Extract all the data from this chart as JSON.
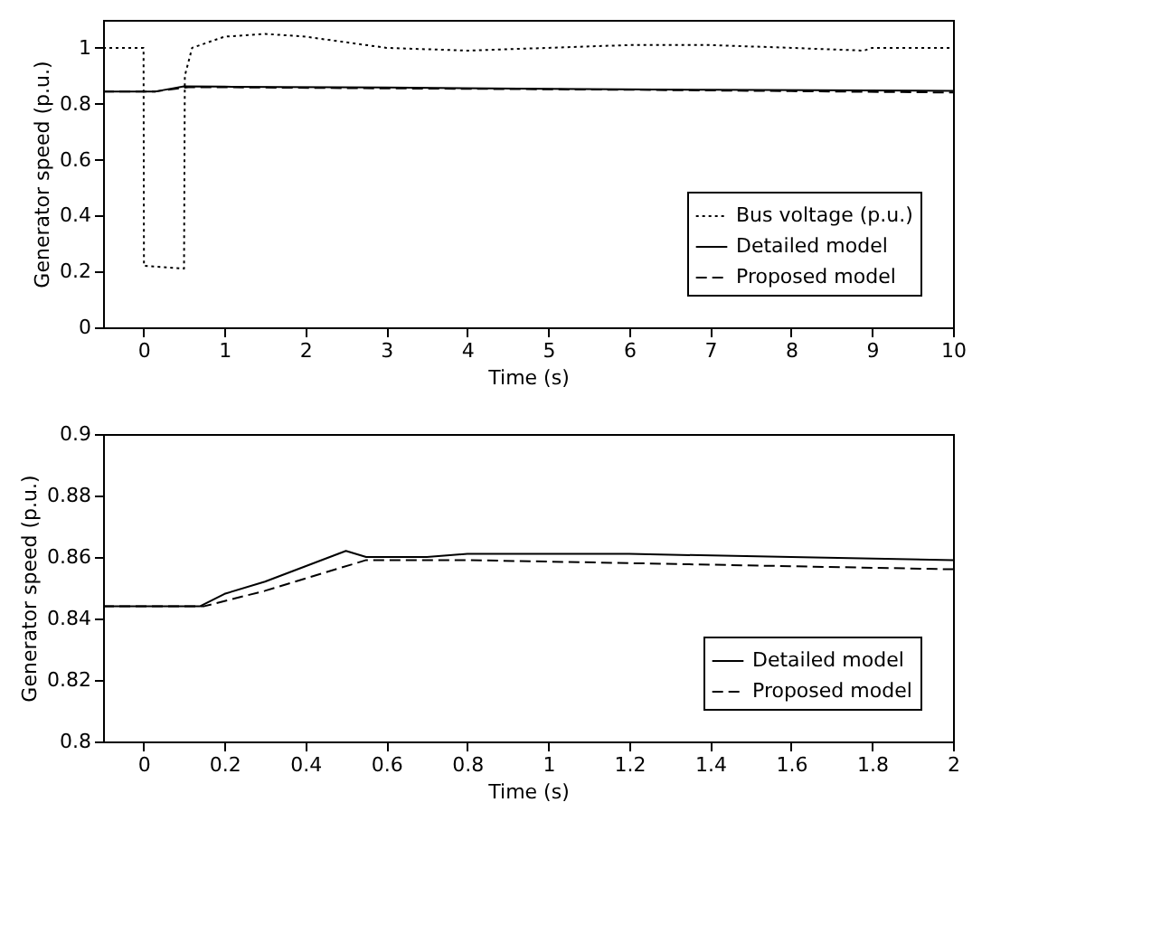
{
  "chart_data": [
    {
      "type": "line",
      "xlabel": "Time (s)",
      "ylabel": "Generator speed (p.u.)",
      "xlim": [
        -0.5,
        10
      ],
      "xticks": [
        0,
        1,
        2,
        3,
        4,
        5,
        6,
        7,
        8,
        9,
        10
      ],
      "ylim": [
        0,
        1.1
      ],
      "yticks": [
        0,
        0.2,
        0.4,
        0.6,
        0.8,
        1
      ],
      "grid": false,
      "legend": "bottom right",
      "series": [
        {
          "name": "Bus voltage (p.u.)",
          "color": "#000000",
          "line_style": "dotted",
          "x": [
            -0.5,
            0,
            0.005,
            0.5,
            0.51,
            0.6,
            1,
            1.5,
            2,
            3,
            4,
            5,
            6,
            7,
            8,
            8.9,
            9,
            10
          ],
          "values": [
            1,
            1,
            0.22,
            0.21,
            0.9,
            1.0,
            1.04,
            1.05,
            1.04,
            1.0,
            0.99,
            1.0,
            1.01,
            1.01,
            1.0,
            0.99,
            1.0,
            1.0
          ]
        },
        {
          "name": "Detailed model",
          "color": "#000000",
          "line_style": "solid",
          "x": [
            -0.5,
            0.15,
            0.5,
            1,
            3,
            5,
            7,
            10
          ],
          "values": [
            0.844,
            0.844,
            0.862,
            0.861,
            0.858,
            0.853,
            0.85,
            0.846
          ]
        },
        {
          "name": "Proposed model",
          "color": "#000000",
          "line_style": "dashed",
          "x": [
            -0.5,
            0.15,
            0.55,
            1,
            3,
            6,
            8,
            10
          ],
          "values": [
            0.844,
            0.844,
            0.859,
            0.859,
            0.855,
            0.85,
            0.845,
            0.84
          ]
        }
      ]
    },
    {
      "type": "line",
      "xlabel": "Time (s)",
      "ylabel": "Generator speed (p.u.)",
      "xlim": [
        -0.1,
        2
      ],
      "xticks": [
        0,
        0.2,
        0.4,
        0.6,
        0.8,
        1,
        1.2,
        1.4,
        1.6,
        1.8,
        2
      ],
      "ylim": [
        0.8,
        0.9
      ],
      "yticks": [
        0.8,
        0.82,
        0.84,
        0.86,
        0.88,
        0.9
      ],
      "grid": false,
      "legend": "bottom right",
      "series": [
        {
          "name": "Detailed model",
          "color": "#000000",
          "line_style": "solid",
          "x": [
            -0.1,
            0.14,
            0.2,
            0.3,
            0.4,
            0.5,
            0.55,
            0.6,
            0.7,
            0.8,
            1.2,
            1.6,
            2
          ],
          "values": [
            0.844,
            0.844,
            0.848,
            0.852,
            0.857,
            0.862,
            0.86,
            0.86,
            0.86,
            0.861,
            0.861,
            0.86,
            0.859
          ]
        },
        {
          "name": "Proposed model",
          "color": "#000000",
          "line_style": "dashed",
          "x": [
            -0.1,
            0.15,
            0.3,
            0.45,
            0.55,
            0.8,
            1.2,
            1.6,
            2
          ],
          "values": [
            0.844,
            0.844,
            0.849,
            0.855,
            0.859,
            0.859,
            0.858,
            0.857,
            0.856
          ]
        }
      ]
    }
  ]
}
